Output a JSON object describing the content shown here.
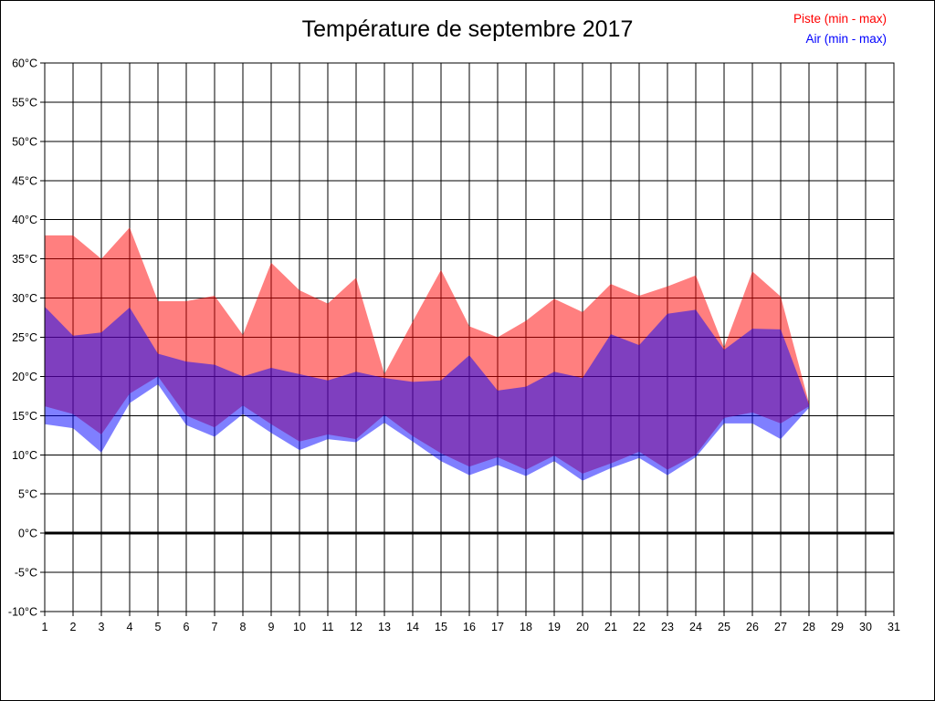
{
  "title": "Température de septembre 2017",
  "legend": {
    "items": [
      {
        "label": "Piste (min - max)",
        "color": "#ff0000"
      },
      {
        "label": "Air (min - max)",
        "color": "#0000ff"
      }
    ]
  },
  "chart_data": {
    "type": "area",
    "subtype": "min-max-bands",
    "title": "Température de septembre 2017",
    "xlabel": "",
    "ylabel": "",
    "xlim": [
      1,
      31
    ],
    "ylim": [
      -10,
      60
    ],
    "grid": true,
    "zero_line_value": 0,
    "x_tick_labels": [
      "1",
      "2",
      "3",
      "4",
      "5",
      "6",
      "7",
      "8",
      "9",
      "10",
      "11",
      "12",
      "13",
      "14",
      "15",
      "16",
      "17",
      "18",
      "19",
      "20",
      "21",
      "22",
      "23",
      "24",
      "25",
      "26",
      "27",
      "28",
      "29",
      "30",
      "31"
    ],
    "y_tick_labels": [
      "60°C",
      "55°C",
      "50°C",
      "45°C",
      "40°C",
      "35°C",
      "30°C",
      "25°C",
      "20°C",
      "15°C",
      "10°C",
      "5°C",
      "0°C",
      "-5°C",
      "-10°C"
    ],
    "y_tick_values": [
      60,
      55,
      50,
      45,
      40,
      35,
      30,
      25,
      20,
      15,
      10,
      5,
      0,
      -5,
      -10
    ],
    "days_with_data": [
      1,
      2,
      3,
      4,
      5,
      6,
      7,
      8,
      9,
      10,
      11,
      12,
      13,
      14,
      15,
      16,
      17,
      18,
      19,
      20,
      21,
      22,
      23,
      24,
      25,
      26,
      27,
      28
    ],
    "series": [
      {
        "name": "Piste (min - max)",
        "color": "#ff0000",
        "fill_opacity": 0.5,
        "min": [
          16.2,
          15.2,
          12.6,
          17.8,
          20.0,
          15.0,
          13.5,
          16.3,
          13.9,
          11.7,
          12.6,
          12.0,
          15.1,
          12.4,
          10.2,
          8.5,
          9.7,
          8.1,
          9.9,
          7.6,
          8.9,
          10.4,
          8.1,
          10.0,
          14.7,
          15.4,
          14.0,
          16.2
        ],
        "max": [
          38.0,
          38.0,
          35.0,
          39.0,
          29.6,
          29.6,
          30.3,
          25.3,
          34.5,
          31.0,
          29.3,
          32.6,
          20.3,
          27.0,
          33.6,
          26.4,
          25.0,
          27.1,
          29.9,
          28.2,
          31.8,
          30.3,
          31.5,
          32.9,
          23.7,
          33.4,
          30.2,
          16.6
        ]
      },
      {
        "name": "Air (min - max)",
        "color": "#0000ff",
        "fill_opacity": 0.5,
        "min": [
          13.9,
          13.4,
          10.3,
          16.6,
          19.0,
          13.8,
          12.3,
          15.2,
          12.8,
          10.6,
          12.0,
          11.6,
          14.1,
          11.7,
          9.2,
          7.4,
          8.7,
          7.3,
          9.2,
          6.7,
          8.3,
          9.6,
          7.4,
          9.7,
          14.0,
          14.0,
          12.0,
          16.0
        ],
        "max": [
          28.9,
          25.2,
          25.6,
          28.8,
          22.9,
          21.9,
          21.5,
          20.0,
          21.1,
          20.3,
          19.5,
          20.6,
          19.8,
          19.3,
          19.5,
          22.7,
          18.2,
          18.7,
          20.6,
          19.8,
          25.4,
          24.0,
          28.0,
          28.5,
          23.4,
          26.1,
          26.0,
          16.4
        ]
      }
    ],
    "colors": {
      "grid": "#000000",
      "plot_border": "#000000",
      "background": "#ffffff",
      "zero_line": "#000000",
      "tick_label": "#000000"
    }
  }
}
